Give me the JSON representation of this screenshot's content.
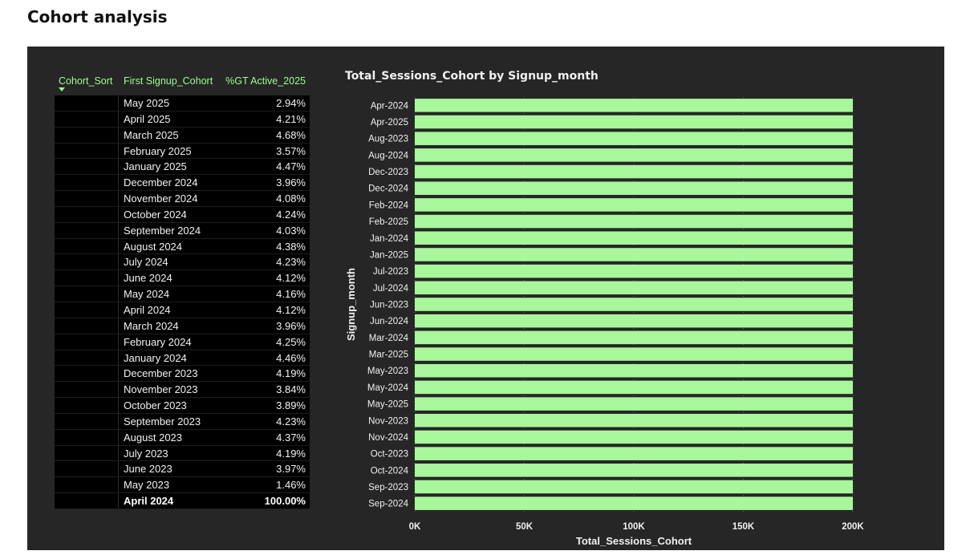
{
  "page": {
    "title": "Cohort analysis"
  },
  "table": {
    "columns": [
      "Cohort_Sort",
      "First Signup_Cohort",
      "%GT Active_2025"
    ],
    "rows": [
      {
        "cohort": "May 2025",
        "pct": "2.94%"
      },
      {
        "cohort": "April 2025",
        "pct": "4.21%"
      },
      {
        "cohort": "March 2025",
        "pct": "4.68%"
      },
      {
        "cohort": "February 2025",
        "pct": "3.57%"
      },
      {
        "cohort": "January 2025",
        "pct": "4.47%"
      },
      {
        "cohort": "December 2024",
        "pct": "3.96%"
      },
      {
        "cohort": "November 2024",
        "pct": "4.08%"
      },
      {
        "cohort": "October 2024",
        "pct": "4.24%"
      },
      {
        "cohort": "September 2024",
        "pct": "4.03%"
      },
      {
        "cohort": "August 2024",
        "pct": "4.38%"
      },
      {
        "cohort": "July 2024",
        "pct": "4.23%"
      },
      {
        "cohort": "June 2024",
        "pct": "4.12%"
      },
      {
        "cohort": "May 2024",
        "pct": "4.16%"
      },
      {
        "cohort": "April 2024",
        "pct": "4.12%"
      },
      {
        "cohort": "March 2024",
        "pct": "3.96%"
      },
      {
        "cohort": "February 2024",
        "pct": "4.25%"
      },
      {
        "cohort": "January 2024",
        "pct": "4.46%"
      },
      {
        "cohort": "December 2023",
        "pct": "4.19%"
      },
      {
        "cohort": "November 2023",
        "pct": "3.84%"
      },
      {
        "cohort": "October 2023",
        "pct": "3.89%"
      },
      {
        "cohort": "September 2023",
        "pct": "4.23%"
      },
      {
        "cohort": "August 2023",
        "pct": "4.37%"
      },
      {
        "cohort": "July 2023",
        "pct": "4.19%"
      },
      {
        "cohort": "June 2023",
        "pct": "3.97%"
      },
      {
        "cohort": "May 2023",
        "pct": "1.46%"
      }
    ],
    "total": {
      "cohort": "April 2024",
      "pct": "100.00%"
    }
  },
  "chart_data": {
    "type": "bar",
    "orientation": "horizontal",
    "title": "Total_Sessions_Cohort by Signup_month",
    "xlabel": "Total_Sessions_Cohort",
    "ylabel": "Signup_month",
    "categories": [
      "Apr-2024",
      "Apr-2025",
      "Aug-2023",
      "Aug-2024",
      "Dec-2023",
      "Dec-2024",
      "Feb-2024",
      "Feb-2025",
      "Jan-2024",
      "Jan-2025",
      "Jul-2023",
      "Jul-2024",
      "Jun-2023",
      "Jun-2024",
      "Mar-2024",
      "Mar-2025",
      "May-2023",
      "May-2024",
      "May-2025",
      "Nov-2023",
      "Nov-2024",
      "Oct-2023",
      "Oct-2024",
      "Sep-2023",
      "Sep-2024"
    ],
    "values": [
      200000,
      200000,
      200000,
      200000,
      200000,
      200000,
      200000,
      200000,
      200000,
      200000,
      200000,
      200000,
      200000,
      200000,
      200000,
      200000,
      200000,
      200000,
      200000,
      200000,
      200000,
      200000,
      200000,
      200000,
      200000
    ],
    "xlim": [
      0,
      200000
    ],
    "xticks": [
      0,
      50000,
      100000,
      150000,
      200000
    ],
    "xtick_labels": [
      "0K",
      "50K",
      "100K",
      "150K",
      "200K"
    ],
    "grid": true,
    "colors": {
      "bar": "#a8f79b",
      "background": "#262626",
      "text": "#f0f0f0"
    }
  }
}
